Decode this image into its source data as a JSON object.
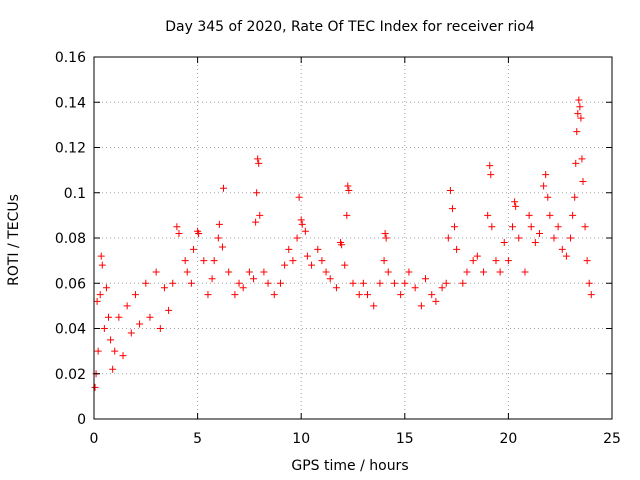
{
  "chart_data": {
    "type": "scatter",
    "title": "Day 345 of 2020, Rate Of TEC Index for receiver rio4",
    "xlabel": "GPS time / hours",
    "ylabel": "ROTI / TECUs",
    "xlim": [
      0,
      25
    ],
    "ylim": [
      0,
      0.16
    ],
    "x_ticks": [
      0,
      5,
      10,
      15,
      20,
      25
    ],
    "x_tick_labels": [
      "0",
      "5",
      "10",
      "15",
      "20",
      "25"
    ],
    "y_ticks": [
      0,
      0.02,
      0.04,
      0.06,
      0.08,
      0.1,
      0.12,
      0.14,
      0.16
    ],
    "y_tick_labels": [
      "0",
      "0.02",
      "0.04",
      "0.06",
      "0.08",
      "0.1",
      "0.12",
      "0.14",
      "0.16"
    ],
    "grid": true,
    "marker": "plus",
    "color": "#ff0000",
    "series": [
      {
        "points": [
          [
            0.05,
            0.014
          ],
          [
            0.1,
            0.02
          ],
          [
            0.15,
            0.052
          ],
          [
            0.2,
            0.03
          ],
          [
            0.3,
            0.055
          ],
          [
            0.35,
            0.072
          ],
          [
            0.4,
            0.068
          ],
          [
            0.5,
            0.04
          ],
          [
            0.6,
            0.058
          ],
          [
            0.7,
            0.045
          ],
          [
            0.8,
            0.035
          ],
          [
            0.9,
            0.022
          ],
          [
            1.0,
            0.03
          ],
          [
            1.2,
            0.045
          ],
          [
            1.4,
            0.028
          ],
          [
            1.6,
            0.05
          ],
          [
            1.8,
            0.038
          ],
          [
            2.0,
            0.055
          ],
          [
            2.2,
            0.042
          ],
          [
            2.5,
            0.06
          ],
          [
            2.7,
            0.045
          ],
          [
            3.0,
            0.065
          ],
          [
            3.2,
            0.04
          ],
          [
            3.4,
            0.058
          ],
          [
            3.6,
            0.048
          ],
          [
            3.8,
            0.06
          ],
          [
            4.0,
            0.085
          ],
          [
            4.1,
            0.082
          ],
          [
            4.4,
            0.07
          ],
          [
            4.5,
            0.065
          ],
          [
            4.7,
            0.06
          ],
          [
            4.8,
            0.075
          ],
          [
            5.0,
            0.083
          ],
          [
            5.05,
            0.082
          ],
          [
            5.3,
            0.07
          ],
          [
            5.5,
            0.055
          ],
          [
            5.7,
            0.062
          ],
          [
            5.8,
            0.07
          ],
          [
            6.0,
            0.08
          ],
          [
            6.05,
            0.086
          ],
          [
            6.2,
            0.076
          ],
          [
            6.25,
            0.102
          ],
          [
            6.5,
            0.065
          ],
          [
            6.8,
            0.055
          ],
          [
            7.0,
            0.06
          ],
          [
            7.2,
            0.058
          ],
          [
            7.5,
            0.065
          ],
          [
            7.7,
            0.062
          ],
          [
            7.8,
            0.087
          ],
          [
            7.85,
            0.1
          ],
          [
            7.9,
            0.115
          ],
          [
            7.95,
            0.113
          ],
          [
            8.0,
            0.09
          ],
          [
            8.2,
            0.065
          ],
          [
            8.4,
            0.06
          ],
          [
            8.7,
            0.055
          ],
          [
            9.0,
            0.06
          ],
          [
            9.2,
            0.068
          ],
          [
            9.4,
            0.075
          ],
          [
            9.6,
            0.07
          ],
          [
            9.8,
            0.08
          ],
          [
            9.9,
            0.098
          ],
          [
            10.0,
            0.088
          ],
          [
            10.05,
            0.086
          ],
          [
            10.2,
            0.083
          ],
          [
            10.3,
            0.072
          ],
          [
            10.5,
            0.068
          ],
          [
            10.8,
            0.075
          ],
          [
            11.0,
            0.07
          ],
          [
            11.2,
            0.065
          ],
          [
            11.4,
            0.062
          ],
          [
            11.7,
            0.058
          ],
          [
            11.9,
            0.078
          ],
          [
            11.95,
            0.077
          ],
          [
            12.1,
            0.068
          ],
          [
            12.2,
            0.09
          ],
          [
            12.25,
            0.103
          ],
          [
            12.3,
            0.101
          ],
          [
            12.5,
            0.06
          ],
          [
            12.8,
            0.055
          ],
          [
            13.0,
            0.06
          ],
          [
            13.2,
            0.055
          ],
          [
            13.5,
            0.05
          ],
          [
            13.8,
            0.06
          ],
          [
            14.0,
            0.07
          ],
          [
            14.05,
            0.082
          ],
          [
            14.1,
            0.08
          ],
          [
            14.2,
            0.065
          ],
          [
            14.5,
            0.06
          ],
          [
            14.8,
            0.055
          ],
          [
            15.0,
            0.06
          ],
          [
            15.2,
            0.065
          ],
          [
            15.5,
            0.058
          ],
          [
            15.8,
            0.05
          ],
          [
            16.0,
            0.062
          ],
          [
            16.3,
            0.055
          ],
          [
            16.5,
            0.052
          ],
          [
            16.8,
            0.058
          ],
          [
            17.0,
            0.06
          ],
          [
            17.1,
            0.08
          ],
          [
            17.2,
            0.101
          ],
          [
            17.3,
            0.093
          ],
          [
            17.4,
            0.085
          ],
          [
            17.5,
            0.075
          ],
          [
            17.8,
            0.06
          ],
          [
            18.0,
            0.065
          ],
          [
            18.3,
            0.07
          ],
          [
            18.5,
            0.072
          ],
          [
            18.8,
            0.065
          ],
          [
            19.0,
            0.09
          ],
          [
            19.1,
            0.112
          ],
          [
            19.15,
            0.108
          ],
          [
            19.2,
            0.085
          ],
          [
            19.4,
            0.07
          ],
          [
            19.6,
            0.065
          ],
          [
            19.8,
            0.078
          ],
          [
            20.0,
            0.07
          ],
          [
            20.2,
            0.085
          ],
          [
            20.3,
            0.096
          ],
          [
            20.35,
            0.094
          ],
          [
            20.5,
            0.08
          ],
          [
            20.8,
            0.065
          ],
          [
            21.0,
            0.09
          ],
          [
            21.1,
            0.085
          ],
          [
            21.3,
            0.078
          ],
          [
            21.5,
            0.082
          ],
          [
            21.7,
            0.103
          ],
          [
            21.8,
            0.108
          ],
          [
            21.9,
            0.098
          ],
          [
            22.0,
            0.09
          ],
          [
            22.2,
            0.08
          ],
          [
            22.4,
            0.085
          ],
          [
            22.6,
            0.075
          ],
          [
            22.8,
            0.072
          ],
          [
            23.0,
            0.08
          ],
          [
            23.1,
            0.09
          ],
          [
            23.2,
            0.098
          ],
          [
            23.25,
            0.113
          ],
          [
            23.3,
            0.127
          ],
          [
            23.35,
            0.135
          ],
          [
            23.4,
            0.141
          ],
          [
            23.45,
            0.138
          ],
          [
            23.5,
            0.133
          ],
          [
            23.55,
            0.115
          ],
          [
            23.6,
            0.105
          ],
          [
            23.7,
            0.085
          ],
          [
            23.8,
            0.07
          ],
          [
            23.9,
            0.06
          ],
          [
            24.0,
            0.055
          ]
        ]
      }
    ]
  }
}
